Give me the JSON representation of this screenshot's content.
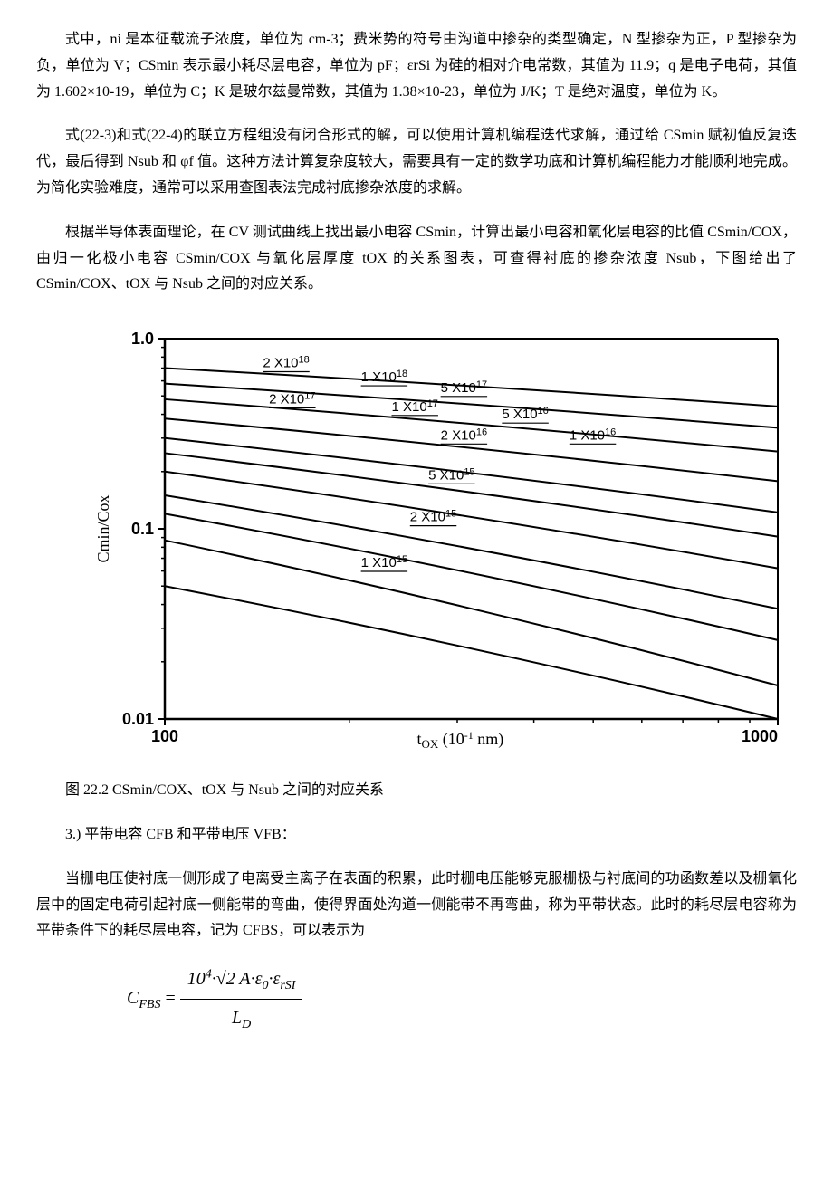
{
  "paragraphs": {
    "p1": "式中，ni 是本征载流子浓度，单位为 cm-3；费米势的符号由沟道中掺杂的类型确定，N 型掺杂为正，P 型掺杂为负，单位为 V；CSmin 表示最小耗尽层电容，单位为 pF；εrSi 为硅的相对介电常数，其值为 11.9；q 是电子电荷，其值为 1.602×10-19，单位为 C；K 是玻尔兹曼常数，其值为 1.38×10-23，单位为 J/K；T 是绝对温度，单位为 K。",
    "p2": "式(22-3)和式(22-4)的联立方程组没有闭合形式的解，可以使用计算机编程迭代求解，通过给 CSmin 赋初值反复迭代，最后得到 Nsub 和 φf 值。这种方法计算复杂度较大，需要具有一定的数学功底和计算机编程能力才能顺利地完成。为简化实验难度，通常可以采用查图表法完成衬底掺杂浓度的求解。",
    "p3": "根据半导体表面理论，在 CV 测试曲线上找出最小电容 CSmin，计算出最小电容和氧化层电容的比值 CSmin/COX，由归一化极小电容 CSmin/COX 与氧化层厚度 tOX 的关系图表，可查得衬底的掺杂浓度 Nsub，下图给出了 CSmin/COX、tOX 与 Nsub 之间的对应关系。",
    "caption": "图 22.2 CSmin/COX、tOX 与 Nsub 之间的对应关系",
    "section": "3.) 平带电容 CFB 和平带电压 VFB：",
    "p4": "当栅电压使衬底一侧形成了电离受主离子在表面的积累，此时栅电压能够克服栅极与衬底间的功函数差以及栅氧化层中的固定电荷引起衬底一侧能带的弯曲，使得界面处沟道一侧能带不再弯曲，称为平带状态。此时的耗尽层电容称为平带条件下的耗尽层电容，记为 CFBS，可以表示为"
  },
  "chart": {
    "type": "line",
    "ylabel": "Cmin/Cox",
    "xlabel": "tox",
    "xlabel_unit": "(10⁻¹ nm)",
    "yticks": [
      "0.01",
      "0.1",
      "1.0"
    ],
    "xticks": [
      "100",
      "1000"
    ],
    "xlim": [
      100,
      1000
    ],
    "ylim": [
      0.01,
      1.0
    ],
    "line_color": "#000000",
    "grid_color": "#000000",
    "background_color": "#ffffff",
    "axis_fontsize": 14,
    "label_fontsize": 16,
    "line_width": 2,
    "curve_labels": [
      {
        "text": "2×10¹⁸",
        "x": 0.16,
        "y": 0.075
      },
      {
        "text": "1×10¹⁸",
        "x": 0.32,
        "y": 0.112
      },
      {
        "text": "5×10¹⁷",
        "x": 0.45,
        "y": 0.14
      },
      {
        "text": "2×10¹⁷",
        "x": 0.17,
        "y": 0.17
      },
      {
        "text": "1×10¹⁷",
        "x": 0.37,
        "y": 0.19
      },
      {
        "text": "5×10¹⁶",
        "x": 0.55,
        "y": 0.21
      },
      {
        "text": "2×10¹⁶",
        "x": 0.45,
        "y": 0.265
      },
      {
        "text": "1×10¹⁶",
        "x": 0.66,
        "y": 0.265
      },
      {
        "text": "5×10¹⁵",
        "x": 0.43,
        "y": 0.37
      },
      {
        "text": "2×10¹⁵",
        "x": 0.4,
        "y": 0.48
      },
      {
        "text": "1×10¹⁵",
        "x": 0.32,
        "y": 0.6
      }
    ],
    "curves": [
      {
        "y_start": 0.05,
        "y_end": 0.01
      },
      {
        "y_start": 0.087,
        "y_end": 0.015
      },
      {
        "y_start": 0.12,
        "y_end": 0.026
      },
      {
        "y_start": 0.15,
        "y_end": 0.038
      },
      {
        "y_start": 0.2,
        "y_end": 0.062
      },
      {
        "y_start": 0.25,
        "y_end": 0.091
      },
      {
        "y_start": 0.3,
        "y_end": 0.122
      },
      {
        "y_start": 0.38,
        "y_end": 0.178
      },
      {
        "y_start": 0.48,
        "y_end": 0.255
      },
      {
        "y_start": 0.58,
        "y_end": 0.34
      },
      {
        "y_start": 0.7,
        "y_end": 0.44
      }
    ]
  },
  "formula": {
    "lhs": "C",
    "lhs_sub": "FBS",
    "eq": "=",
    "num_parts": [
      "10",
      "4",
      "·√2 A·ε",
      "0",
      "·ε",
      "rSI"
    ],
    "den": "L",
    "den_sub": "D"
  }
}
